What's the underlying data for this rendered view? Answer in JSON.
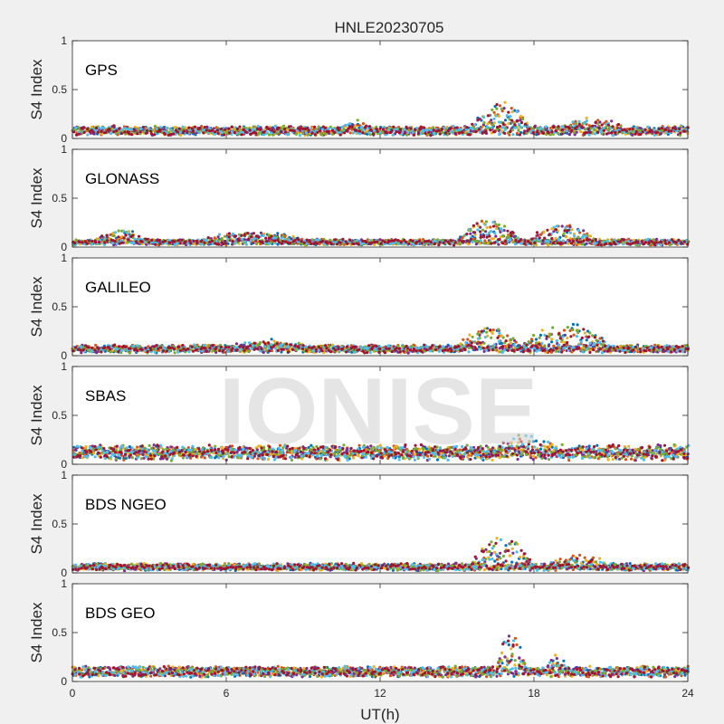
{
  "title": "HNLE20230705",
  "watermark": "IONISE",
  "chart_data": {
    "type": "scatter",
    "title": "HNLE20230705",
    "xlabel": "UT(h)",
    "ylabel": "S4 Index",
    "xlim": [
      0,
      24
    ],
    "ylim": [
      0,
      1
    ],
    "xticks": [
      0,
      6,
      12,
      18,
      24
    ],
    "yticks": [
      0,
      0.5,
      1
    ],
    "ytick_labels": [
      "0",
      "0.5",
      "1"
    ],
    "grid": false,
    "series_colors": [
      "#0072BD",
      "#D95319",
      "#EDB120",
      "#7E2F8E",
      "#77AC30",
      "#4DBEEE",
      "#A2142F"
    ],
    "panels": [
      {
        "label": "GPS",
        "background": "#ffffff",
        "baseline": 0.08,
        "noise": 0.03,
        "events": [
          [
            15.5,
            18.0,
            0.25
          ],
          [
            19.0,
            21.5,
            0.1
          ],
          [
            10.5,
            11.5,
            0.08
          ]
        ]
      },
      {
        "label": "GLONASS",
        "background": "#ffffff",
        "baseline": 0.05,
        "noise": 0.02,
        "events": [
          [
            15.0,
            17.5,
            0.22
          ],
          [
            17.8,
            20.5,
            0.18
          ],
          [
            5.0,
            9.0,
            0.1
          ],
          [
            0.8,
            3.0,
            0.12
          ]
        ]
      },
      {
        "label": "GALILEO",
        "background": "#ffffff",
        "baseline": 0.07,
        "noise": 0.025,
        "events": [
          [
            15.0,
            17.5,
            0.22
          ],
          [
            17.5,
            21.0,
            0.25
          ],
          [
            6.0,
            9.5,
            0.06
          ]
        ]
      },
      {
        "label": "SBAS",
        "background": "#ffffff",
        "baseline": 0.12,
        "noise": 0.06,
        "events": [
          [
            16.5,
            19.0,
            0.15
          ]
        ]
      },
      {
        "label": "BDS NGEO",
        "background": "#ffffff",
        "baseline": 0.06,
        "noise": 0.025,
        "events": [
          [
            15.5,
            18.0,
            0.3
          ],
          [
            18.5,
            21.0,
            0.1
          ]
        ]
      },
      {
        "label": "BDS GEO",
        "background": "#ffffff",
        "baseline": 0.1,
        "noise": 0.025,
        "events": [
          [
            16.5,
            17.7,
            0.4
          ],
          [
            18.3,
            19.5,
            0.12
          ]
        ]
      }
    ]
  }
}
